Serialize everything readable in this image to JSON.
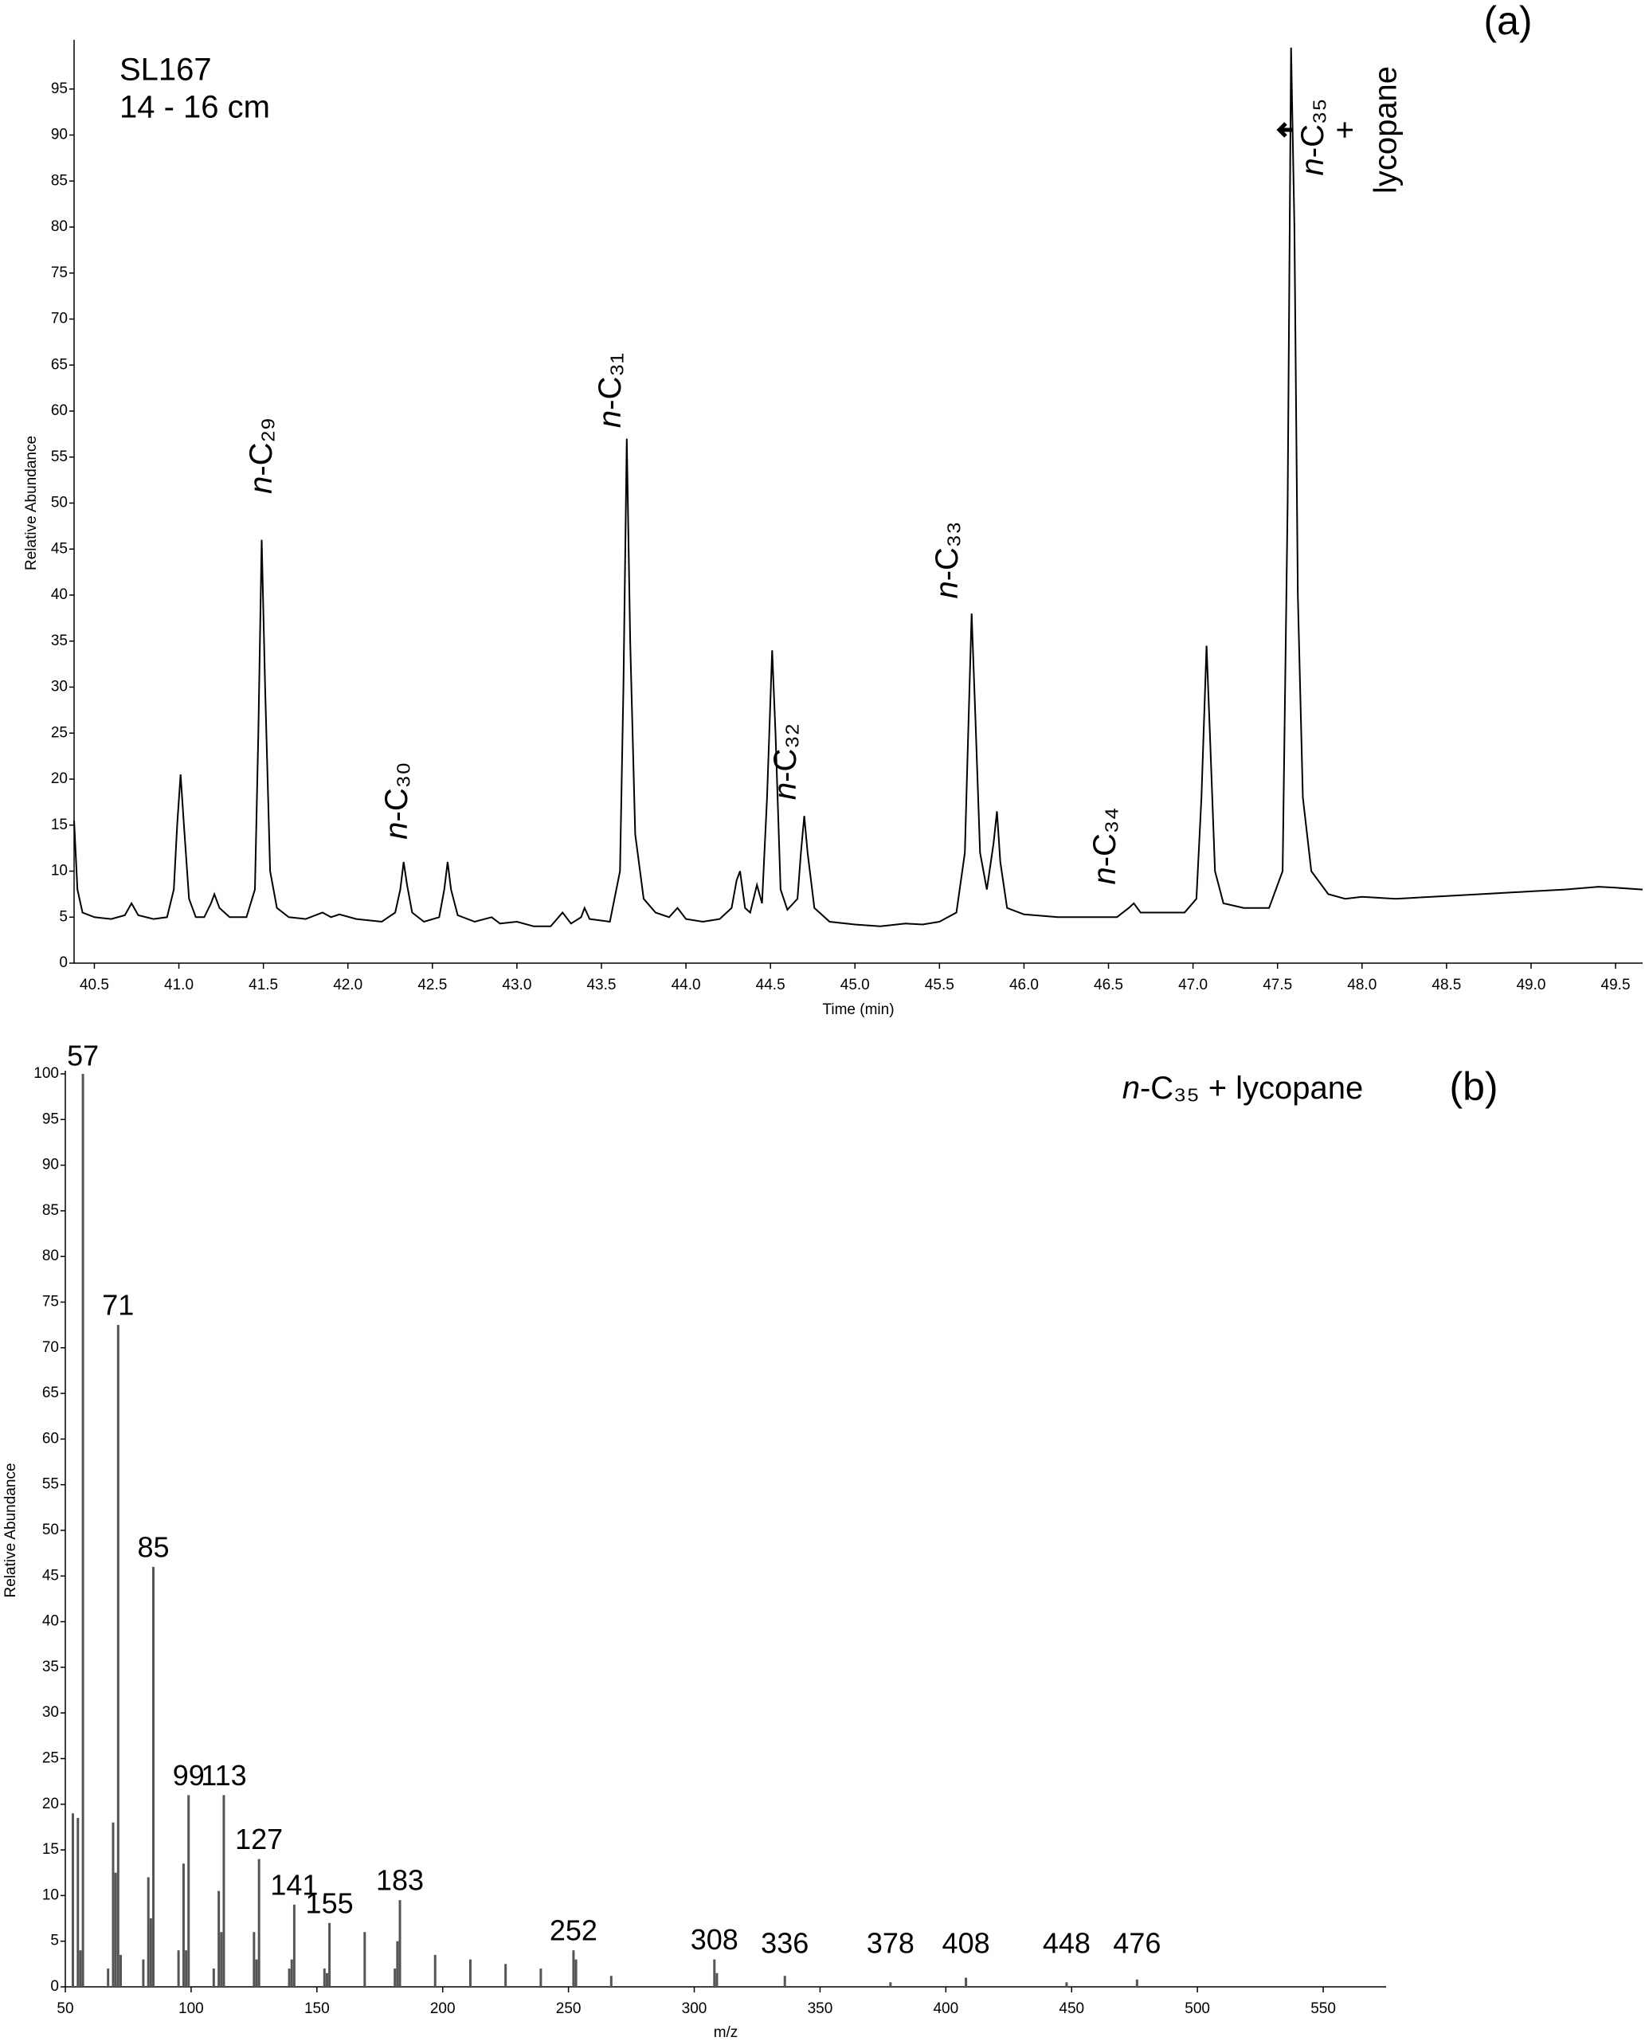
{
  "chart_data": [
    {
      "type": "line",
      "panel_label": "(a)",
      "sample": "SL167",
      "depth": "14 - 16 cm",
      "xlabel": "Time (min)",
      "ylabel": "Relative Abundance",
      "color": "#000000",
      "xlim": [
        40.38,
        49.66
      ],
      "ylim": [
        0,
        100
      ],
      "xticks": [
        40.5,
        {
          "value": 41,
          "label": "41.0"
        },
        41.5,
        {
          "value": 42,
          "label": "42.0"
        },
        42.5,
        {
          "value": 43,
          "label": "43.0"
        },
        43.5,
        {
          "value": 44,
          "label": "44.0"
        },
        44.5,
        {
          "value": 45,
          "label": "45.0"
        },
        45.5,
        {
          "value": 46,
          "label": "46.0"
        },
        46.5,
        {
          "value": 47,
          "label": "47.0"
        },
        47.5,
        {
          "value": 48,
          "label": "48.0"
        },
        48.5,
        {
          "value": 49,
          "label": "49.0"
        },
        49.5
      ],
      "yticks": [
        0,
        5,
        10,
        15,
        20,
        25,
        30,
        35,
        40,
        45,
        50,
        55,
        60,
        65,
        70,
        75,
        80,
        85,
        90,
        95
      ],
      "annotations": [
        "n-C₂₉",
        "n-C₃₀",
        "n-C₃₁",
        "n-C₃₂",
        "n-C₃₃",
        "n-C₃₄",
        "n-C₃₅",
        "+",
        "lycopane"
      ],
      "x": [
        40.38,
        40.4,
        40.43,
        40.5,
        40.6,
        40.68,
        40.72,
        40.76,
        40.85,
        40.93,
        40.97,
        40.99,
        41.01,
        41.03,
        41.06,
        41.1,
        41.15,
        41.19,
        41.21,
        41.24,
        41.3,
        41.4,
        41.45,
        41.47,
        41.49,
        41.51,
        41.54,
        41.58,
        41.65,
        41.75,
        41.85,
        41.9,
        41.95,
        42.05,
        42.2,
        42.28,
        42.31,
        42.33,
        42.35,
        42.38,
        42.45,
        42.54,
        42.57,
        42.59,
        42.61,
        42.65,
        42.75,
        42.85,
        42.9,
        43.0,
        43.1,
        43.2,
        43.27,
        43.32,
        43.38,
        43.4,
        43.43,
        43.55,
        43.61,
        43.63,
        43.65,
        43.67,
        43.7,
        43.75,
        43.82,
        43.9,
        43.95,
        44.0,
        44.1,
        44.2,
        44.27,
        44.3,
        44.32,
        44.35,
        44.38,
        44.42,
        44.45,
        44.48,
        44.51,
        44.53,
        44.56,
        44.6,
        44.66,
        44.68,
        44.7,
        44.72,
        44.76,
        44.85,
        45.0,
        45.15,
        45.3,
        45.4,
        45.5,
        45.6,
        45.65,
        45.67,
        45.69,
        45.71,
        45.74,
        45.78,
        45.82,
        45.84,
        45.86,
        45.9,
        46.0,
        46.2,
        46.4,
        46.55,
        46.62,
        46.65,
        46.69,
        46.8,
        46.95,
        47.02,
        47.05,
        47.08,
        47.1,
        47.13,
        47.18,
        47.3,
        47.45,
        47.53,
        47.56,
        47.58,
        47.6,
        47.62,
        47.65,
        47.7,
        47.8,
        47.9,
        48.0,
        48.2,
        48.5,
        48.8,
        49.0,
        49.2,
        49.4,
        49.5,
        49.66
      ],
      "values": [
        15.5,
        8,
        5.5,
        5,
        4.8,
        5.2,
        6.5,
        5.2,
        4.8,
        5,
        8,
        15,
        20.5,
        15,
        7,
        5,
        5,
        6.5,
        7.5,
        6,
        5,
        5,
        8,
        25,
        46,
        30,
        10,
        6,
        5,
        4.8,
        5.5,
        5,
        5.3,
        4.8,
        4.5,
        5.5,
        8,
        11,
        8.5,
        5.5,
        4.5,
        5,
        8,
        11,
        8,
        5.2,
        4.5,
        5,
        4.3,
        4.5,
        4,
        4,
        5.5,
        4.3,
        5,
        6,
        4.8,
        4.5,
        10,
        30,
        57,
        35,
        14,
        7,
        5.5,
        5,
        6,
        4.8,
        4.5,
        4.8,
        6,
        9,
        10,
        6,
        5.5,
        8.5,
        6.5,
        18,
        34,
        25,
        8,
        5.8,
        7,
        12,
        16,
        12,
        6,
        4.5,
        4.2,
        4,
        4.3,
        4.2,
        4.5,
        5.5,
        12,
        25,
        38,
        28,
        12,
        8,
        13,
        16.5,
        11,
        6,
        5.3,
        5,
        5,
        5,
        6,
        6.5,
        5.5,
        5.5,
        5.5,
        7,
        18,
        34.5,
        25,
        10,
        6.5,
        6,
        6,
        10,
        50,
        99.5,
        80,
        40,
        18,
        10,
        7.5,
        7,
        7.2,
        7,
        7.3,
        7.6,
        7.8,
        8,
        8.3,
        8.2,
        8
      ]
    },
    {
      "type": "bar",
      "panel_label": "(b)",
      "title": "n-C₃₅ + lycopane",
      "xlabel": "m/z",
      "ylabel": "Relative Abundance",
      "color": "#555555",
      "xlim": [
        50,
        575
      ],
      "ylim": [
        0,
        100
      ],
      "xticks": [
        50,
        100,
        150,
        200,
        250,
        300,
        350,
        400,
        450,
        500,
        550
      ],
      "yticks": [
        0,
        5,
        10,
        15,
        20,
        25,
        30,
        35,
        40,
        45,
        50,
        55,
        60,
        65,
        70,
        75,
        80,
        85,
        90,
        95,
        100
      ],
      "peak_labels": [
        57,
        71,
        85,
        99,
        113,
        127,
        141,
        155,
        183,
        252,
        308,
        336,
        378,
        408,
        448,
        476
      ],
      "x": [
        53,
        55,
        56,
        57,
        67,
        69,
        70,
        71,
        72,
        81,
        83,
        84,
        85,
        95,
        97,
        98,
        99,
        109,
        111,
        112,
        113,
        125,
        126,
        127,
        139,
        140,
        141,
        153,
        154,
        155,
        169,
        181,
        182,
        183,
        197,
        211,
        225,
        239,
        252,
        253,
        267,
        308,
        309,
        336,
        378,
        408,
        448,
        476
      ],
      "values": [
        19,
        18.5,
        4,
        100,
        2,
        18,
        12.5,
        72.5,
        3.5,
        3,
        12,
        7.5,
        46,
        4,
        13.5,
        4,
        21,
        2,
        10.5,
        6,
        21,
        6,
        3,
        14,
        2,
        3,
        9,
        2,
        1.5,
        7,
        6,
        2,
        5,
        9.5,
        3.5,
        3,
        2.5,
        2,
        4,
        3,
        1.2,
        3,
        1.5,
        1.2,
        0.5,
        1,
        0.5,
        0.8
      ]
    }
  ]
}
